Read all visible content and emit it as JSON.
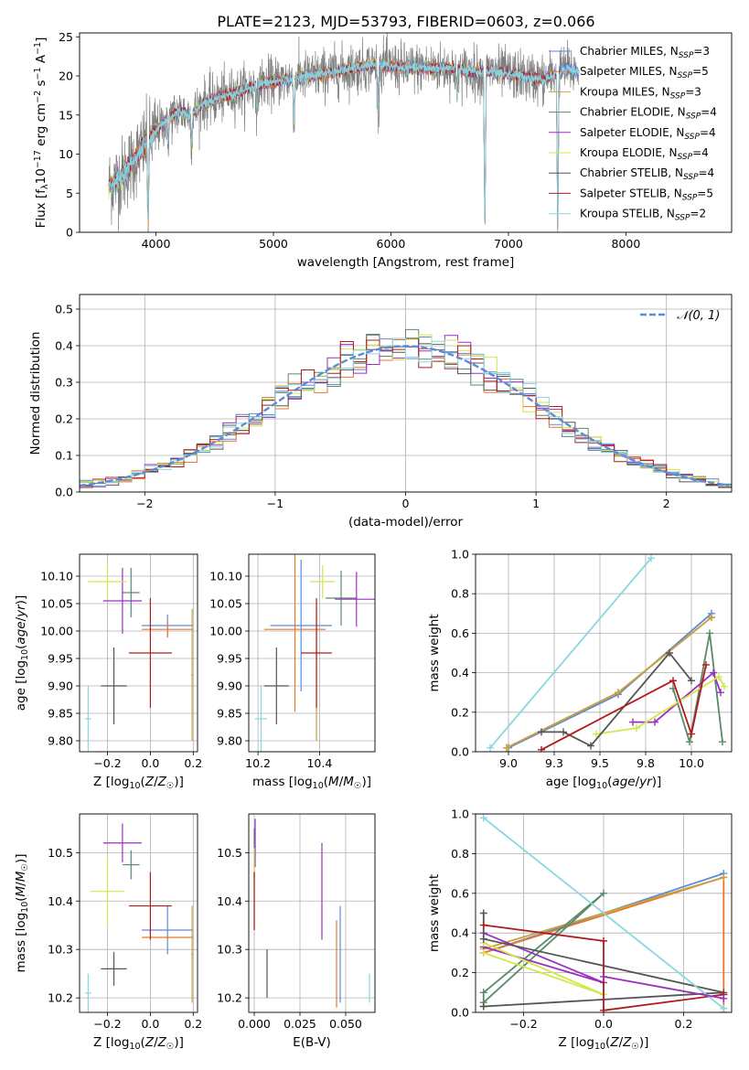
{
  "figure_title": "PLATE=2123, MJD=53793, FIBERID=0603, z=0.066",
  "models": [
    {
      "label": "Chabrier MILES, N",
      "sub": "SSP",
      "tail": "=3",
      "color": "#5b8bdc"
    },
    {
      "label": "Salpeter MILES, N",
      "sub": "SSP",
      "tail": "=5",
      "color": "#e8772e"
    },
    {
      "label": "Kroupa MILES, N",
      "sub": "SSP",
      "tail": "=3",
      "color": "#c8a23a"
    },
    {
      "label": "Chabrier ELODIE, N",
      "sub": "SSP",
      "tail": "=4",
      "color": "#5a8a6a"
    },
    {
      "label": "Salpeter ELODIE, N",
      "sub": "SSP",
      "tail": "=4",
      "color": "#9b2fc0"
    },
    {
      "label": "Kroupa ELODIE, N",
      "sub": "SSP",
      "tail": "=4",
      "color": "#d4e64a"
    },
    {
      "label": "Chabrier STELIB, N",
      "sub": "SSP",
      "tail": "=4",
      "color": "#555555"
    },
    {
      "label": "Salpeter STELIB, N",
      "sub": "SSP",
      "tail": "=5",
      "color": "#b01c1c"
    },
    {
      "label": "Kroupa STELIB, N",
      "sub": "SSP",
      "tail": "=2",
      "color": "#86d8e0"
    }
  ],
  "chart_data": [
    {
      "id": "spectrum",
      "type": "line",
      "xlabel": "wavelength [Angstrom, rest frame]",
      "ylabel": "Flux [f_λ 10^-17 erg cm^-2 s^-1 A^-1]",
      "xlim": [
        3350,
        8900
      ],
      "ylim": [
        0,
        25.5
      ],
      "xticks": [
        4000,
        5000,
        6000,
        7000,
        8000
      ],
      "yticks": [
        0,
        5,
        10,
        15,
        20,
        25
      ],
      "grid": false,
      "legend_position": "top-right",
      "continuum": {
        "x": [
          3600,
          3700,
          3800,
          3900,
          4000,
          4100,
          4200,
          4300,
          4400,
          4500,
          4700,
          4900,
          5100,
          5300,
          5500,
          5700,
          5900,
          6100,
          6300,
          6500,
          6700,
          6900,
          7100,
          7300,
          7500,
          7600
        ],
        "y": [
          6,
          7,
          9,
          11,
          13,
          14.5,
          15.5,
          15,
          16.5,
          17,
          18,
          19,
          19.5,
          20,
          20.5,
          21,
          21.5,
          21,
          21,
          21,
          20.5,
          20.5,
          20,
          19.5,
          21,
          20.5
        ]
      },
      "absorption_features": [
        {
          "x": 3934,
          "y": 1
        },
        {
          "x": 4102,
          "y": 11
        },
        {
          "x": 4305,
          "y": 11
        },
        {
          "x": 4861,
          "y": 15
        },
        {
          "x": 5175,
          "y": 14
        },
        {
          "x": 5890,
          "y": 15
        },
        {
          "x": 6563,
          "y": 17
        },
        {
          "x": 6800,
          "y": 0
        },
        {
          "x": 7420,
          "y": 0
        }
      ]
    },
    {
      "id": "residuals",
      "type": "histogram",
      "xlabel": "(data-model)/error",
      "ylabel": "Normed distribution",
      "xlim": [
        -2.5,
        2.5
      ],
      "ylim": [
        0,
        0.54
      ],
      "xticks": [
        -2,
        -1,
        0,
        1,
        2
      ],
      "yticks": [
        0,
        0.1,
        0.2,
        0.3,
        0.4,
        0.5
      ],
      "grid": true,
      "bin_width": 0.1,
      "reference": {
        "name": "𝒩(0, 1)",
        "mean": 0,
        "sigma": 1,
        "color": "#5b8bdc"
      },
      "legend_position": "top-right"
    },
    {
      "id": "age_vs_Z",
      "type": "scatter",
      "xlabel": "Z [log10(Z/Z☉)]",
      "ylabel": "age  [log10(age/yr)]",
      "xlim": [
        -0.33,
        0.22
      ],
      "ylim": [
        9.78,
        10.14
      ],
      "xticks": [
        -0.2,
        0.0,
        0.2
      ],
      "yticks": [
        9.8,
        9.85,
        9.9,
        9.95,
        10.0,
        10.05,
        10.1
      ],
      "grid": true,
      "points": [
        {
          "model": 0,
          "x": 0.08,
          "y": 10.01,
          "xerr": 0.12,
          "yerr": 0.02
        },
        {
          "model": 1,
          "x": 0.08,
          "y": 10.003,
          "xerr": 0.12,
          "yerr": 0.015
        },
        {
          "model": 2,
          "x": 0.195,
          "y": 9.92,
          "xerr": 0.005,
          "yerr": 0.12
        },
        {
          "model": 3,
          "x": -0.09,
          "y": 10.07,
          "xerr": 0.04,
          "yerr": 0.045
        },
        {
          "model": 4,
          "x": -0.13,
          "y": 10.055,
          "xerr": 0.09,
          "yerr": 0.06
        },
        {
          "model": 5,
          "x": -0.2,
          "y": 10.09,
          "xerr": 0.09,
          "yerr": 0.03
        },
        {
          "model": 6,
          "x": -0.17,
          "y": 9.9,
          "xerr": 0.06,
          "yerr": 0.07
        },
        {
          "model": 7,
          "x": 0.0,
          "y": 9.96,
          "xerr": 0.1,
          "yerr": 0.1
        },
        {
          "model": 8,
          "x": -0.29,
          "y": 9.84,
          "xerr": 0.015,
          "yerr": 0.06
        }
      ]
    },
    {
      "id": "age_vs_mass",
      "type": "scatter",
      "xlabel": "mass [log10(M/M☉)]",
      "ylabel": "",
      "xlim": [
        10.17,
        10.58
      ],
      "ylim": [
        9.78,
        10.14
      ],
      "xticks": [
        10.2,
        10.4
      ],
      "yticks": [
        9.8,
        9.85,
        9.9,
        9.95,
        10.0,
        10.05,
        10.1
      ],
      "grid": true,
      "points": [
        {
          "model": 0,
          "x": 10.34,
          "y": 10.01,
          "xerr": 0.1,
          "yerr": 0.12
        },
        {
          "model": 1,
          "x": 10.32,
          "y": 10.003,
          "xerr": 0.1,
          "yerr": 0.15
        },
        {
          "model": 2,
          "x": 10.39,
          "y": 9.92,
          "xerr": 0.002,
          "yerr": 0.12
        },
        {
          "model": 3,
          "x": 10.47,
          "y": 10.06,
          "xerr": 0.05,
          "yerr": 0.05
        },
        {
          "model": 4,
          "x": 10.52,
          "y": 10.058,
          "xerr": 0.07,
          "yerr": 0.05
        },
        {
          "model": 5,
          "x": 10.41,
          "y": 10.09,
          "xerr": 0.04,
          "yerr": 0.03
        },
        {
          "model": 6,
          "x": 10.26,
          "y": 9.9,
          "xerr": 0.04,
          "yerr": 0.07
        },
        {
          "model": 7,
          "x": 10.39,
          "y": 9.96,
          "xerr": 0.05,
          "yerr": 0.1
        },
        {
          "model": 8,
          "x": 10.21,
          "y": 9.84,
          "xerr": 0.02,
          "yerr": 0.06
        }
      ]
    },
    {
      "id": "weight_vs_age",
      "type": "line",
      "xlabel": "age  [log10(age/yr)]",
      "ylabel": "mass weight",
      "xlim": [
        8.82,
        10.22
      ],
      "ylim": [
        0,
        1.0
      ],
      "xticks": [
        9.0,
        9.25,
        9.5,
        9.75,
        10.0
      ],
      "yticks": [
        0.0,
        0.2,
        0.4,
        0.6,
        0.8,
        1.0
      ],
      "grid": true,
      "series": [
        {
          "model": 0,
          "x": [
            9.0,
            9.6,
            10.11
          ],
          "y": [
            0.02,
            0.29,
            0.7
          ]
        },
        {
          "model": 1,
          "x": [
            8.99,
            9.6,
            10.11
          ],
          "y": [
            0.02,
            0.3,
            0.68
          ]
        },
        {
          "model": 2,
          "x": [
            8.99,
            9.6,
            10.11
          ],
          "y": [
            0.02,
            0.3,
            0.68
          ]
        },
        {
          "model": 3,
          "x": [
            9.9,
            9.99,
            10.1,
            10.17
          ],
          "y": [
            0.32,
            0.05,
            0.6,
            0.05
          ]
        },
        {
          "model": 4,
          "x": [
            9.68,
            9.8,
            10.12,
            10.16
          ],
          "y": [
            0.15,
            0.15,
            0.4,
            0.3
          ]
        },
        {
          "model": 5,
          "x": [
            9.48,
            9.7,
            10.15,
            10.18
          ],
          "y": [
            0.09,
            0.12,
            0.38,
            0.33
          ]
        },
        {
          "model": 6,
          "x": [
            9.18,
            9.3,
            9.45,
            9.88,
            10.0
          ],
          "y": [
            0.1,
            0.1,
            0.03,
            0.5,
            0.36
          ]
        },
        {
          "model": 7,
          "x": [
            9.18,
            9.9,
            10.0,
            10.08
          ],
          "y": [
            0.01,
            0.36,
            0.09,
            0.44
          ]
        },
        {
          "model": 8,
          "x": [
            8.9,
            9.78
          ],
          "y": [
            0.02,
            0.98
          ]
        }
      ]
    },
    {
      "id": "mass_vs_Z",
      "type": "scatter",
      "xlabel": "Z [log10(Z/Z☉)]",
      "ylabel": "mass [log10(M/M☉)]",
      "xlim": [
        -0.33,
        0.22
      ],
      "ylim": [
        10.17,
        10.58
      ],
      "xticks": [
        -0.2,
        0.0,
        0.2
      ],
      "yticks": [
        10.2,
        10.3,
        10.4,
        10.5
      ],
      "grid": true,
      "points": [
        {
          "model": 0,
          "x": 0.08,
          "y": 10.34,
          "xerr": 0.12,
          "yerr": 0.05
        },
        {
          "model": 1,
          "x": 0.08,
          "y": 10.325,
          "xerr": 0.12,
          "yerr": 0.004
        },
        {
          "model": 2,
          "x": 0.195,
          "y": 10.29,
          "xerr": 0.005,
          "yerr": 0.1
        },
        {
          "model": 3,
          "x": -0.09,
          "y": 10.475,
          "xerr": 0.04,
          "yerr": 0.03
        },
        {
          "model": 4,
          "x": -0.13,
          "y": 10.52,
          "xerr": 0.09,
          "yerr": 0.04
        },
        {
          "model": 5,
          "x": -0.2,
          "y": 10.42,
          "xerr": 0.08,
          "yerr": 0.07
        },
        {
          "model": 6,
          "x": -0.17,
          "y": 10.26,
          "xerr": 0.06,
          "yerr": 0.035
        },
        {
          "model": 7,
          "x": 0.0,
          "y": 10.39,
          "xerr": 0.1,
          "yerr": 0.07
        },
        {
          "model": 8,
          "x": -0.29,
          "y": 10.21,
          "xerr": 0.015,
          "yerr": 0.04
        }
      ]
    },
    {
      "id": "mass_vs_ebv",
      "type": "scatter",
      "xlabel": "E(B-V)",
      "ylabel": "",
      "xlim": [
        -0.003,
        0.066
      ],
      "ylim": [
        10.17,
        10.58
      ],
      "xticks": [
        0.0,
        0.025,
        0.05
      ],
      "xtick_labels": [
        "0.000",
        "0.025",
        "0.050"
      ],
      "yticks": [
        10.2,
        10.3,
        10.4,
        10.5
      ],
      "grid": true,
      "points": [
        {
          "model": 0,
          "x": 0.047,
          "y": 10.29,
          "xerr": 0,
          "yerr": 0.1
        },
        {
          "model": 1,
          "x": 0.045,
          "y": 10.27,
          "xerr": 0,
          "yerr": 0.09
        },
        {
          "model": 2,
          "x": 0.0,
          "y": 10.4,
          "xerr": 0,
          "yerr": 0.06
        },
        {
          "model": 3,
          "x": 0.0,
          "y": 10.5,
          "xerr": 0,
          "yerr": 0.05
        },
        {
          "model": 4,
          "x": 0.0005,
          "y": 10.52,
          "xerr": 0,
          "yerr": 0.05
        },
        {
          "model": 5,
          "x": 0.0,
          "y": 10.47,
          "xerr": 0,
          "yerr": 0.04
        },
        {
          "model": 6,
          "x": 0.007,
          "y": 10.25,
          "xerr": 0,
          "yerr": 0.05
        },
        {
          "model": 7,
          "x": 0.0,
          "y": 10.4,
          "xerr": 0,
          "yerr": 0.06
        },
        {
          "model": 8,
          "x": 0.063,
          "y": 10.22,
          "xerr": 0,
          "yerr": 0.03
        },
        {
          "model": 4,
          "x": 0.037,
          "y": 10.42,
          "xerr": 0,
          "yerr": 0.1
        }
      ]
    },
    {
      "id": "weight_vs_Z",
      "type": "line",
      "xlabel": "Z [log10(Z/Z☉)]",
      "ylabel": "mass weight",
      "xlim": [
        -0.32,
        0.32
      ],
      "ylim": [
        0,
        1.0
      ],
      "xticks": [
        -0.2,
        0.0,
        0.2
      ],
      "yticks": [
        0.0,
        0.2,
        0.4,
        0.6,
        0.8,
        1.0
      ],
      "grid": true,
      "series": [
        {
          "model": 0,
          "x": [
            -0.3,
            0.3
          ],
          "y": [
            0.3,
            0.7
          ]
        },
        {
          "model": 1,
          "x": [
            -0.3,
            0.3,
            0.3
          ],
          "y": [
            0.3,
            0.68,
            0.0
          ]
        },
        {
          "model": 2,
          "x": [
            -0.3,
            0.3
          ],
          "y": [
            0.32,
            0.68
          ]
        },
        {
          "model": 3,
          "x": [
            -0.3,
            0.0,
            -0.3,
            -0.3
          ],
          "y": [
            0.05,
            0.6,
            0.1,
            0.03
          ]
        },
        {
          "model": 4,
          "x": [
            -0.3,
            0.0,
            -0.3
          ],
          "y": [
            0.4,
            0.15,
            0.33
          ]
        },
        {
          "model": 5,
          "x": [
            -0.3,
            0.0,
            -0.3
          ],
          "y": [
            0.35,
            0.09,
            0.3
          ]
        },
        {
          "model": 6,
          "x": [
            -0.3,
            -0.3,
            0.3,
            -0.3
          ],
          "y": [
            0.5,
            0.37,
            0.1,
            0.03
          ]
        },
        {
          "model": 7,
          "x": [
            -0.3,
            0.0,
            0.0,
            0.3,
            0.3
          ],
          "y": [
            0.44,
            0.36,
            0.01,
            0.09,
            0.09
          ]
        },
        {
          "model": 8,
          "x": [
            -0.3,
            0.3
          ],
          "y": [
            0.98,
            0.02
          ]
        },
        {
          "model": 4,
          "x": [
            0.0,
            0.3
          ],
          "y": [
            0.18,
            0.07
          ]
        }
      ]
    }
  ]
}
